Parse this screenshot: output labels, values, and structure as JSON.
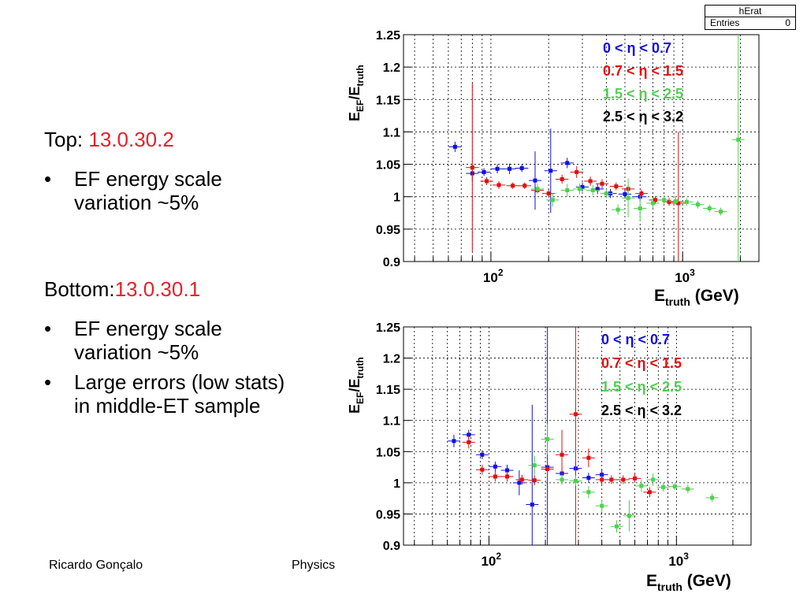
{
  "slide": {
    "top_label": "Top: ",
    "top_version": "13.0.30.2",
    "top_bullets": [
      "EF energy scale variation ~5%"
    ],
    "bottom_label": "Bottom:",
    "bottom_version": "13.0.30.1",
    "bottom_bullets": [
      "EF energy scale variation ~5%",
      "Large errors (low stats) in middle-ET sample"
    ],
    "bullet_symbol": "•",
    "footer_author": "Ricardo Gonçalo",
    "footer_center": "Physics"
  },
  "statbox": {
    "title": "hErat",
    "entries_label": "Entries",
    "entries_value": "0"
  },
  "colors": {
    "eta1": "#1010e0",
    "eta2": "#e01010",
    "eta3": "#50d050",
    "eta4": "#000000"
  },
  "chart_data": [
    {
      "type": "scatter",
      "title": "",
      "xlabel_main": "E",
      "xlabel_sub": "truth",
      "xlabel_unit": " (GeV)",
      "ylabel_main": "E",
      "ylabel_sub1": "EF",
      "ylabel_mid": "/E",
      "ylabel_sub2": "truth",
      "x_scale": "log",
      "xlim": [
        35,
        2500
      ],
      "ylim": [
        0.9,
        1.25
      ],
      "y_ticks": [
        "0.9",
        "0.95",
        "1",
        "1.05",
        "1.1",
        "1.15",
        "1.2",
        "1.25"
      ],
      "x_tick_labels": [
        {
          "base": "10",
          "exp": "2"
        },
        {
          "base": "10",
          "exp": "3"
        }
      ],
      "grid": true,
      "legend_position": "top-right",
      "series": [
        {
          "name": "0 < η < 0.7",
          "color_key": "eta1",
          "points": [
            [
              65,
              1.077,
              0.008
            ],
            [
              80,
              1.036,
              0.012
            ],
            [
              92,
              1.038,
              0.006
            ],
            [
              108,
              1.043,
              0.007
            ],
            [
              125,
              1.043,
              0.008
            ],
            [
              145,
              1.044,
              0.006
            ],
            [
              170,
              1.025,
              0.045
            ],
            [
              205,
              1.04,
              0.065
            ],
            [
              250,
              1.052,
              0.008
            ],
            [
              300,
              1.015,
              0.007
            ],
            [
              360,
              1.012,
              0.008
            ],
            [
              420,
              1.005,
              0.007
            ],
            [
              500,
              1.004,
              0.007
            ],
            [
              600,
              1.0,
              0.006
            ]
          ]
        },
        {
          "name": "0.7 <  η < 1.5",
          "color_key": "eta2",
          "points": [
            [
              80,
              1.045,
              0.13
            ],
            [
              95,
              1.024,
              0.006
            ],
            [
              110,
              1.018,
              0.006
            ],
            [
              130,
              1.017,
              0.005
            ],
            [
              150,
              1.017,
              0.005
            ],
            [
              175,
              1.01,
              0.005
            ],
            [
              200,
              1.005,
              0.006
            ],
            [
              235,
              1.027,
              0.007
            ],
            [
              280,
              1.038,
              0.009
            ],
            [
              330,
              1.024,
              0.007
            ],
            [
              380,
              1.02,
              0.007
            ],
            [
              450,
              1.016,
              0.006
            ],
            [
              520,
              1.012,
              0.006
            ],
            [
              610,
              1.005,
              0.006
            ],
            [
              720,
              0.995,
              0.006
            ],
            [
              850,
              0.992,
              0.006
            ],
            [
              950,
              0.99,
              0.11
            ]
          ]
        },
        {
          "name": "1.5 < η < 2.5",
          "color_key": "eta3",
          "points": [
            [
              175,
              1.012,
              0.008
            ],
            [
              210,
              0.995,
              0.01
            ],
            [
              250,
              1.01,
              0.01
            ],
            [
              290,
              1.012,
              0.008
            ],
            [
              340,
              1.01,
              0.008
            ],
            [
              400,
              1.005,
              0.007
            ],
            [
              460,
              0.98,
              0.008
            ],
            [
              520,
              0.998,
              0.03
            ],
            [
              600,
              0.982,
              0.02
            ],
            [
              700,
              0.99,
              0.008
            ],
            [
              800,
              0.995,
              0.007
            ],
            [
              920,
              0.993,
              0.006
            ],
            [
              1050,
              0.992,
              0.006
            ],
            [
              1200,
              0.988,
              0.006
            ],
            [
              1380,
              0.982,
              0.006
            ],
            [
              1580,
              0.977,
              0.006
            ],
            [
              1950,
              1.088,
              0.3
            ]
          ]
        },
        {
          "name": "2.5 < η < 3.2",
          "color_key": "eta4",
          "points": []
        }
      ]
    },
    {
      "type": "scatter",
      "title": "",
      "xlabel_main": "E",
      "xlabel_sub": "truth",
      "xlabel_unit": " (GeV)",
      "ylabel_main": "E",
      "ylabel_sub1": "EF",
      "ylabel_mid": "/E",
      "ylabel_sub2": "truth",
      "x_scale": "log",
      "xlim": [
        35,
        2500
      ],
      "ylim": [
        0.9,
        1.25
      ],
      "y_ticks": [
        "0.9",
        "0.95",
        "1",
        "1.05",
        "1.1",
        "1.15",
        "1.2",
        "1.25"
      ],
      "x_tick_labels": [
        {
          "base": "10",
          "exp": "2"
        },
        {
          "base": "10",
          "exp": "3"
        }
      ],
      "grid": true,
      "legend_position": "top-right",
      "series": [
        {
          "name": "0 < η < 0.7",
          "color_key": "eta1",
          "points": [
            [
              65,
              1.067,
              0.01
            ],
            [
              78,
              1.077,
              0.008
            ],
            [
              92,
              1.045,
              0.007
            ],
            [
              108,
              1.026,
              0.008
            ],
            [
              125,
              1.02,
              0.009
            ],
            [
              145,
              1.0,
              0.02
            ],
            [
              170,
              0.965,
              0.16
            ],
            [
              205,
              1.025,
              0.25
            ],
            [
              245,
              1.015,
              0.01
            ],
            [
              290,
              1.023,
              0.01
            ],
            [
              340,
              1.008,
              0.008
            ],
            [
              400,
              1.013,
              0.008
            ]
          ]
        },
        {
          "name": "0.7 <  η < 1.5",
          "color_key": "eta2",
          "points": [
            [
              78,
              1.065,
              0.01
            ],
            [
              92,
              1.021,
              0.008
            ],
            [
              108,
              1.01,
              0.008
            ],
            [
              125,
              1.01,
              0.008
            ],
            [
              150,
              1.005,
              0.008
            ],
            [
              175,
              1.004,
              0.008
            ],
            [
              205,
              1.022,
              0.01
            ],
            [
              245,
              1.045,
              0.04
            ],
            [
              290,
              1.11,
              0.25
            ],
            [
              340,
              1.04,
              0.015
            ],
            [
              400,
              1.005,
              0.008
            ],
            [
              450,
              1.005,
              0.007
            ],
            [
              520,
              1.005,
              0.007
            ],
            [
              600,
              1.007,
              0.007
            ],
            [
              720,
              0.985,
              0.008
            ]
          ]
        },
        {
          "name": "1.5 < η < 2.5",
          "color_key": "eta3",
          "points": [
            [
              175,
              1.028,
              0.015
            ],
            [
              205,
              1.07,
              0.025
            ],
            [
              245,
              1.005,
              0.008
            ],
            [
              290,
              1.003,
              0.008
            ],
            [
              340,
              0.985,
              0.01
            ],
            [
              400,
              0.963,
              0.01
            ],
            [
              480,
              0.93,
              0.01
            ],
            [
              560,
              0.947,
              0.025
            ],
            [
              650,
              0.995,
              0.01
            ],
            [
              750,
              1.005,
              0.01
            ],
            [
              850,
              0.993,
              0.007
            ],
            [
              980,
              0.994,
              0.006
            ],
            [
              1150,
              0.99,
              0.007
            ],
            [
              1550,
              0.976,
              0.007
            ]
          ]
        },
        {
          "name": "2.5 < η < 3.2",
          "color_key": "eta4",
          "points": []
        }
      ]
    }
  ]
}
